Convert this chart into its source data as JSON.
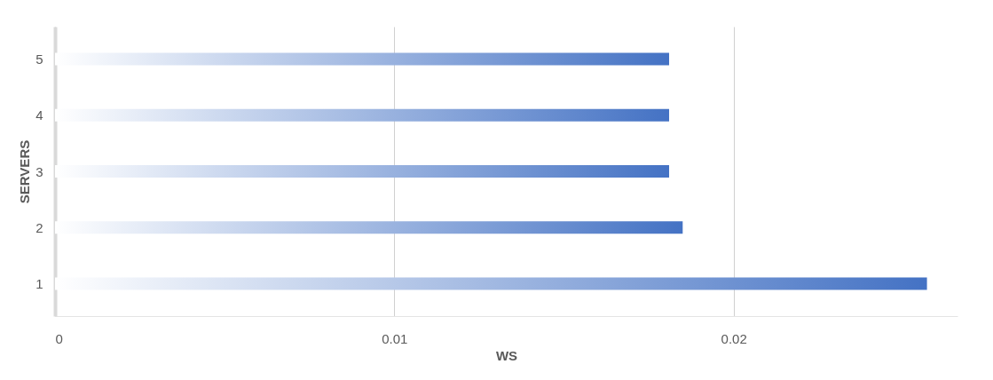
{
  "chart_data": {
    "type": "bar",
    "orientation": "horizontal",
    "categories": [
      "5",
      "4",
      "3",
      "2",
      "1"
    ],
    "values": [
      0.0181,
      0.0181,
      0.0181,
      0.0185,
      0.0257
    ],
    "color": "#4472c4",
    "xlim": [
      0,
      0.0266
    ],
    "xticks": [
      0,
      0.01,
      0.02
    ],
    "xlabel": "WS",
    "ylabel": "SERVERS",
    "grid": "x"
  }
}
